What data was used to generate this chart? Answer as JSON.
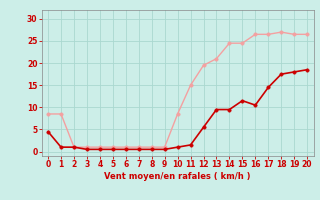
{
  "x": [
    0,
    1,
    2,
    3,
    4,
    5,
    6,
    7,
    8,
    9,
    10,
    11,
    12,
    13,
    14,
    15,
    16,
    17,
    18,
    19,
    20
  ],
  "y_rafales": [
    8.5,
    8.5,
    1.0,
    1.0,
    1.0,
    1.0,
    1.0,
    1.0,
    1.0,
    1.0,
    8.5,
    15.0,
    19.5,
    21.0,
    24.5,
    24.5,
    26.5,
    26.5,
    27.0,
    26.5,
    26.5
  ],
  "y_moyen": [
    4.5,
    1.0,
    1.0,
    0.5,
    0.5,
    0.5,
    0.5,
    0.5,
    0.5,
    0.5,
    1.0,
    1.5,
    5.5,
    9.5,
    9.5,
    11.5,
    10.5,
    14.5,
    17.5,
    18.0,
    18.5
  ],
  "color_rafales": "#f4a0a0",
  "color_moyen": "#cc0000",
  "xlabel": "Vent moyen/en rafales ( km/h )",
  "ylim": [
    -1,
    32
  ],
  "xlim": [
    -0.5,
    20.5
  ],
  "yticks": [
    0,
    5,
    10,
    15,
    20,
    25,
    30
  ],
  "xticks": [
    0,
    1,
    2,
    3,
    4,
    5,
    6,
    7,
    8,
    9,
    10,
    11,
    12,
    13,
    14,
    15,
    16,
    17,
    18,
    19,
    20
  ],
  "bg_color": "#cceee8",
  "grid_color": "#aad8d0",
  "tick_color": "#cc0000",
  "label_color": "#cc0000",
  "linewidth_rafales": 1.0,
  "linewidth_moyen": 1.2,
  "markersize": 2.5
}
